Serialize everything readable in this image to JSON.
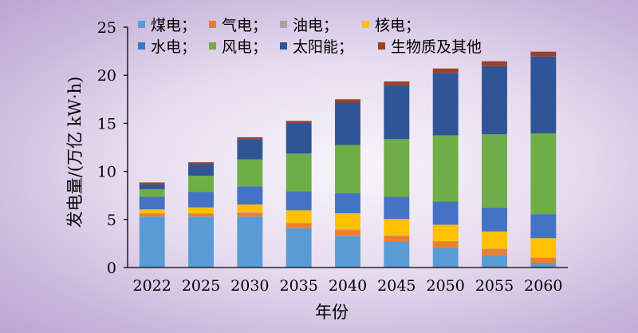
{
  "chart_data": {
    "type": "bar",
    "stacked": true,
    "title": "",
    "xlabel": "年份",
    "ylabel": "发电量/(万亿 kW·h)",
    "ylim": [
      0,
      25
    ],
    "yticks": [
      0,
      5,
      10,
      15,
      20,
      25
    ],
    "categories": [
      "2022",
      "2025",
      "2030",
      "2035",
      "2040",
      "2045",
      "2050",
      "2055",
      "2060"
    ],
    "series": [
      {
        "name": "煤电",
        "legend_label": "煤电；",
        "color": "#5b9bd5",
        "values": [
          5.3,
          5.3,
          5.3,
          4.1,
          3.3,
          2.7,
          2.1,
          1.3,
          0.5
        ]
      },
      {
        "name": "气电",
        "legend_label": "气电；",
        "color": "#ed7d31",
        "values": [
          0.3,
          0.3,
          0.4,
          0.5,
          0.6,
          0.6,
          0.6,
          0.6,
          0.5
        ]
      },
      {
        "name": "油电",
        "legend_label": "油电；",
        "color": "#a5a5a5",
        "values": [
          0.05,
          0.05,
          0.05,
          0.05,
          0.05,
          0.05,
          0.05,
          0.05,
          0.05
        ]
      },
      {
        "name": "核电",
        "legend_label": "核电；",
        "color": "#ffc000",
        "values": [
          0.4,
          0.6,
          0.8,
          1.3,
          1.7,
          1.7,
          1.7,
          1.8,
          2.0
        ]
      },
      {
        "name": "水电",
        "legend_label": "水电；",
        "color": "#4472c4",
        "values": [
          1.3,
          1.6,
          1.9,
          2.0,
          2.1,
          2.3,
          2.4,
          2.5,
          2.5
        ]
      },
      {
        "name": "风电",
        "legend_label": "风电；",
        "color": "#70ad47",
        "values": [
          0.8,
          1.7,
          2.8,
          3.9,
          5.0,
          6.0,
          6.9,
          7.6,
          8.4
        ]
      },
      {
        "name": "太阳能",
        "legend_label": "太阳能；",
        "color": "#2f5597",
        "values": [
          0.5,
          1.2,
          2.1,
          3.1,
          4.4,
          5.6,
          6.5,
          7.1,
          8.0
        ]
      },
      {
        "name": "生物质及其他",
        "legend_label": "生物质及其他",
        "color": "#9e3f2a",
        "values": [
          0.2,
          0.2,
          0.2,
          0.3,
          0.35,
          0.4,
          0.45,
          0.5,
          0.5
        ]
      }
    ]
  }
}
